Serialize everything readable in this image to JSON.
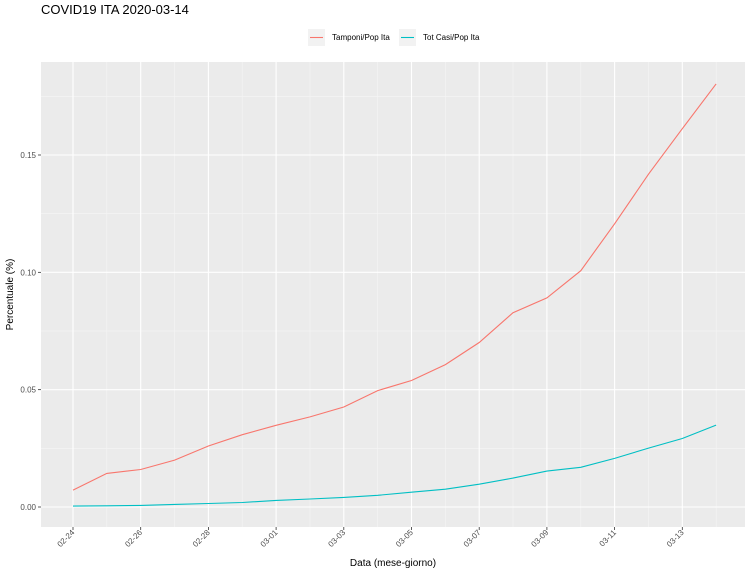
{
  "chart_data": {
    "type": "line",
    "title": "COVID19 ITA 2020-03-14",
    "xlabel": "Data (mese-giorno)",
    "ylabel": "Percentuale (%)",
    "x": [
      "02-24",
      "02-25",
      "02-26",
      "02-27",
      "02-28",
      "02-29",
      "03-01",
      "03-02",
      "03-03",
      "03-04",
      "03-05",
      "03-06",
      "03-07",
      "03-08",
      "03-09",
      "03-10",
      "03-11",
      "03-12",
      "03-13",
      "03-14"
    ],
    "x_tick_labels": [
      "02-24",
      "02-26",
      "02-28",
      "03-01",
      "03-03",
      "03-05",
      "03-07",
      "03-09",
      "03-11",
      "03-13"
    ],
    "y_ticks": [
      0.0,
      0.05,
      0.1,
      0.15
    ],
    "y_tick_labels": [
      "0.00",
      "0.05",
      "0.10",
      "0.15"
    ],
    "ylim": [
      -0.009,
      0.189
    ],
    "grid": true,
    "legend_position": "top",
    "series": [
      {
        "name": "Tamponi/Pop Ita",
        "color": "#F8766D",
        "values": [
          0.0072,
          0.0143,
          0.016,
          0.02,
          0.026,
          0.0308,
          0.0348,
          0.0384,
          0.0426,
          0.0496,
          0.0539,
          0.0607,
          0.0701,
          0.0828,
          0.0891,
          0.1007,
          0.1207,
          0.1418,
          0.1612,
          0.1803
        ]
      },
      {
        "name": "Tot Casi/Pop Ita",
        "color": "#00BFC4",
        "values": [
          0.0004,
          0.0005,
          0.0007,
          0.0011,
          0.0015,
          0.0019,
          0.0028,
          0.0034,
          0.0041,
          0.005,
          0.0063,
          0.0076,
          0.0097,
          0.0123,
          0.0153,
          0.0169,
          0.0207,
          0.0251,
          0.0292,
          0.0349
        ]
      }
    ]
  }
}
